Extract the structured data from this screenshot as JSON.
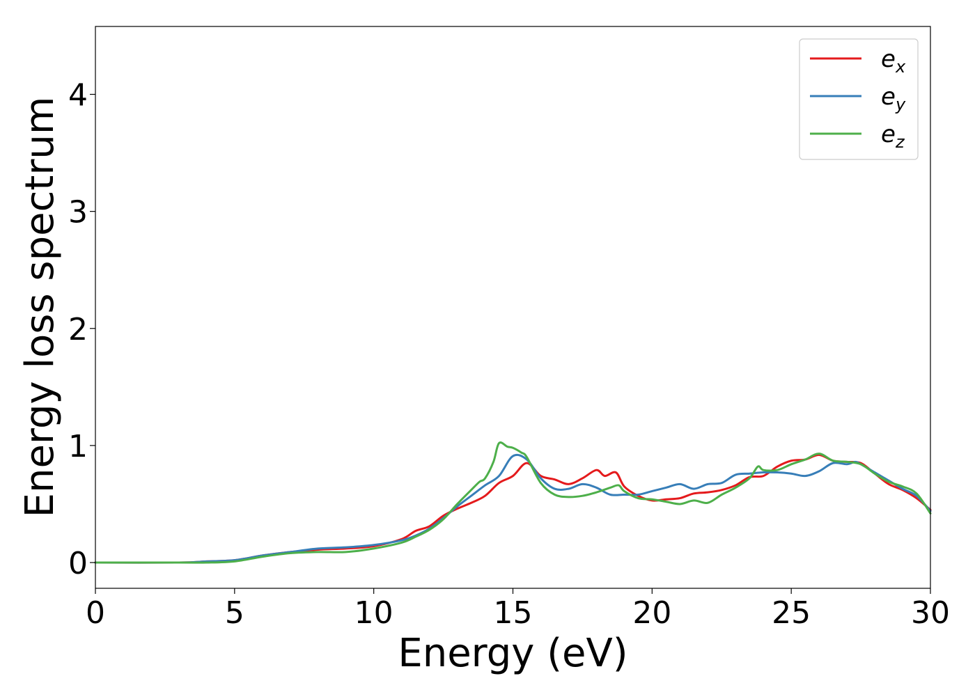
{
  "chart_data": {
    "type": "line",
    "title": "",
    "xlabel": "Energy (eV)",
    "ylabel": "Energy loss spectrum",
    "xlim": [
      0,
      30
    ],
    "ylim": [
      -0.22,
      4.58
    ],
    "xticks": [
      0,
      5,
      10,
      15,
      20,
      25,
      30
    ],
    "xtick_labels": [
      "0",
      "5",
      "10",
      "15",
      "20",
      "25",
      "30"
    ],
    "yticks": [
      0,
      1,
      2,
      3,
      4
    ],
    "ytick_labels": [
      "0",
      "1",
      "2",
      "3",
      "4"
    ],
    "grid": false,
    "legend_position": "top-right",
    "series": [
      {
        "name": "e_x",
        "legend_base": "e",
        "legend_sub": "x",
        "color": "#e41a1c",
        "x": [
          0,
          3,
          4,
          5,
          6,
          7,
          8,
          9,
          10,
          11,
          11.5,
          12,
          12.5,
          13,
          13.5,
          14,
          14.5,
          15,
          15.5,
          16,
          16.5,
          17,
          17.5,
          18,
          18.3,
          18.7,
          19,
          19.5,
          20,
          20.5,
          21,
          21.5,
          22,
          22.5,
          23,
          23.5,
          24,
          24.5,
          25,
          25.5,
          26,
          26.5,
          27,
          27.5,
          28,
          28.5,
          29,
          29.5,
          30
        ],
        "y": [
          0,
          0,
          0.01,
          0.02,
          0.06,
          0.09,
          0.11,
          0.12,
          0.14,
          0.2,
          0.27,
          0.31,
          0.4,
          0.46,
          0.51,
          0.57,
          0.68,
          0.74,
          0.85,
          0.74,
          0.71,
          0.67,
          0.72,
          0.79,
          0.74,
          0.77,
          0.65,
          0.57,
          0.53,
          0.54,
          0.55,
          0.59,
          0.6,
          0.62,
          0.66,
          0.73,
          0.74,
          0.82,
          0.87,
          0.88,
          0.92,
          0.87,
          0.86,
          0.85,
          0.76,
          0.67,
          0.62,
          0.55,
          0.45
        ]
      },
      {
        "name": "e_y",
        "legend_base": "e",
        "legend_sub": "y",
        "color": "#377eb8",
        "x": [
          0,
          3,
          4,
          5,
          6,
          7,
          8,
          9,
          10,
          11,
          11.5,
          12,
          12.5,
          13,
          13.5,
          14,
          14.5,
          15,
          15.5,
          16,
          16.5,
          17,
          17.5,
          18,
          18.5,
          19,
          19.5,
          20,
          20.5,
          21,
          21.5,
          22,
          22.5,
          23,
          23.5,
          24,
          24.5,
          25,
          25.5,
          26,
          26.5,
          27,
          27.3,
          27.5,
          28,
          28.5,
          29,
          29.5,
          30
        ],
        "y": [
          0,
          0,
          0.01,
          0.02,
          0.06,
          0.09,
          0.12,
          0.13,
          0.15,
          0.19,
          0.23,
          0.29,
          0.38,
          0.48,
          0.57,
          0.66,
          0.74,
          0.91,
          0.88,
          0.72,
          0.63,
          0.63,
          0.67,
          0.64,
          0.58,
          0.58,
          0.58,
          0.61,
          0.64,
          0.67,
          0.63,
          0.67,
          0.68,
          0.75,
          0.76,
          0.77,
          0.77,
          0.76,
          0.74,
          0.78,
          0.85,
          0.84,
          0.86,
          0.84,
          0.77,
          0.7,
          0.63,
          0.57,
          0.44
        ]
      },
      {
        "name": "e_z",
        "legend_base": "e",
        "legend_sub": "z",
        "color": "#4daf4a",
        "x": [
          0,
          3,
          4,
          5,
          6,
          7,
          8,
          9,
          10,
          11,
          11.5,
          12,
          12.5,
          13,
          13.5,
          13.8,
          14,
          14.3,
          14.5,
          14.8,
          15,
          15.3,
          15.5,
          16,
          16.5,
          17,
          17.5,
          18,
          18.5,
          18.8,
          19,
          19.5,
          20,
          20.5,
          21,
          21.5,
          22,
          22.5,
          23,
          23.5,
          23.8,
          24,
          24.5,
          25,
          25.5,
          26,
          26.5,
          27,
          27.5,
          28,
          28.5,
          29,
          29.5,
          30
        ],
        "y": [
          0,
          0,
          0,
          0.01,
          0.05,
          0.08,
          0.09,
          0.09,
          0.12,
          0.17,
          0.22,
          0.28,
          0.37,
          0.5,
          0.62,
          0.69,
          0.72,
          0.86,
          1.02,
          0.99,
          0.98,
          0.94,
          0.9,
          0.68,
          0.58,
          0.56,
          0.57,
          0.6,
          0.64,
          0.66,
          0.61,
          0.55,
          0.54,
          0.52,
          0.5,
          0.53,
          0.51,
          0.58,
          0.64,
          0.72,
          0.82,
          0.79,
          0.79,
          0.84,
          0.88,
          0.93,
          0.87,
          0.86,
          0.84,
          0.76,
          0.69,
          0.65,
          0.59,
          0.42
        ]
      }
    ]
  }
}
